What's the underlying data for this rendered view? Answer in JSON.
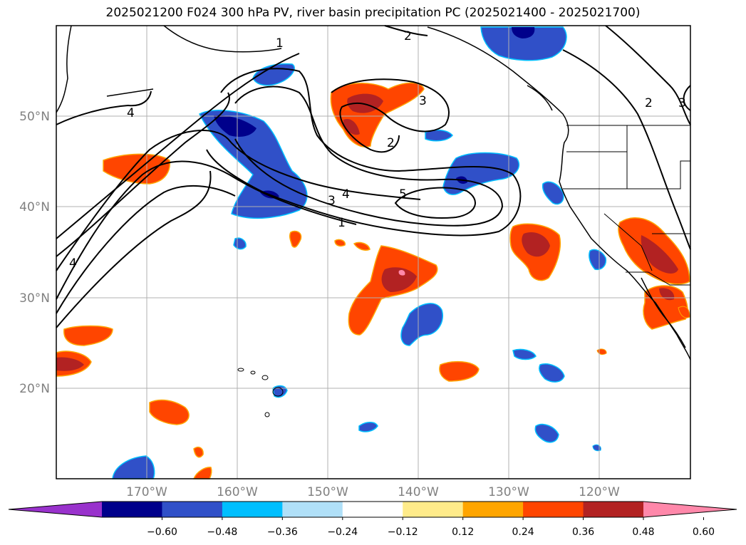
{
  "title": "2025021200 F024 300 hPa PV, river basin precipitation PC (2025021400 - 2025021700)",
  "map": {
    "lat_labels": [
      "50°N",
      "40°N",
      "30°N",
      "20°N"
    ],
    "lon_labels": [
      "170°W",
      "160°W",
      "150°W",
      "140°W",
      "130°W",
      "120°W"
    ],
    "extent": {
      "lon_min": -180,
      "lon_max": -110,
      "lat_min": 10,
      "lat_max": 60
    },
    "pv_contour_labels": [
      "1",
      "2",
      "2",
      "3",
      "3",
      "4",
      "4",
      "5",
      "1",
      "2",
      "3",
      "4"
    ]
  },
  "colorbar": {
    "ticks": [
      "−0.60",
      "−0.48",
      "−0.36",
      "−0.24",
      "−0.12",
      "0.12",
      "0.24",
      "0.36",
      "0.48",
      "0.60"
    ],
    "colors": [
      "#9932cc",
      "#00008b",
      "#3050c8",
      "#00bfff",
      "#b0e0f8",
      "#ffffff",
      "#ffeb8a",
      "#ffa500",
      "#ff4500",
      "#b22222",
      "#ff88aa"
    ]
  },
  "colors": {
    "neg_strong": "#00008b",
    "neg_mid": "#3050c8",
    "neg_light": "#00bfff",
    "pos_mid": "#ff4500",
    "pos_strong": "#b22222",
    "pos_max": "#ff88aa",
    "pos_light": "#ffa500"
  }
}
